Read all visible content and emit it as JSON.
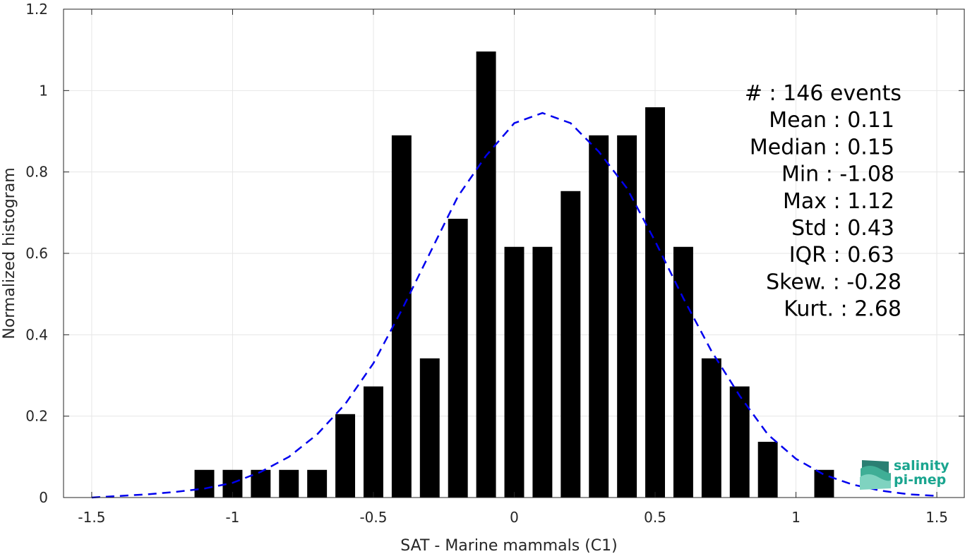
{
  "chart_data": {
    "type": "bar",
    "xlabel": "SAT - Marine mammals (C1)",
    "ylabel": "Normalized histogram",
    "xlim": [
      -1.6,
      1.6
    ],
    "ylim": [
      0,
      1.2
    ],
    "xticks": [
      "-1.5",
      "-1",
      "-0.5",
      "0",
      "0.5",
      "1",
      "1.5"
    ],
    "xtick_values": [
      -1.5,
      -1,
      -0.5,
      0,
      0.5,
      1,
      1.5
    ],
    "yticks": [
      "0",
      "0.2",
      "0.4",
      "0.6",
      "0.8",
      "1",
      "1.2"
    ],
    "ytick_values": [
      0,
      0.2,
      0.4,
      0.6,
      0.8,
      1,
      1.2
    ],
    "grid": true,
    "bar_color": "#000000",
    "bars": {
      "centers": [
        -1.1,
        -1.0,
        -0.9,
        -0.8,
        -0.7,
        -0.6,
        -0.5,
        -0.4,
        -0.3,
        -0.2,
        -0.1,
        0.0,
        0.1,
        0.2,
        0.3,
        0.4,
        0.5,
        0.6,
        0.7,
        0.8,
        0.9,
        1.0,
        1.1
      ],
      "values": [
        0.068,
        0.068,
        0.068,
        0.068,
        0.068,
        0.205,
        0.273,
        0.89,
        0.342,
        0.685,
        1.096,
        0.616,
        0.616,
        0.753,
        0.89,
        0.89,
        0.959,
        0.616,
        0.342,
        0.273,
        0.137,
        0.0,
        0.068
      ]
    },
    "fit_curve": {
      "name": "",
      "color": "#0000ee",
      "style": "dashed",
      "x": [
        -1.5,
        -1.4,
        -1.3,
        -1.2,
        -1.1,
        -1.0,
        -0.9,
        -0.8,
        -0.7,
        -0.6,
        -0.5,
        -0.4,
        -0.3,
        -0.2,
        -0.1,
        0.0,
        0.1,
        0.2,
        0.3,
        0.4,
        0.5,
        0.6,
        0.7,
        0.8,
        0.9,
        1.0,
        1.1,
        1.2,
        1.3,
        1.4,
        1.5
      ],
      "y": [
        0.0,
        0.004,
        0.008,
        0.014,
        0.022,
        0.036,
        0.063,
        0.1,
        0.155,
        0.23,
        0.33,
        0.46,
        0.6,
        0.74,
        0.84,
        0.92,
        0.945,
        0.92,
        0.85,
        0.76,
        0.63,
        0.49,
        0.36,
        0.25,
        0.155,
        0.095,
        0.056,
        0.032,
        0.017,
        0.008,
        0.004
      ]
    },
    "annotations": [
      "#  : 146 events",
      "Mean : 0.11",
      "Median : 0.15",
      "Min : -1.08",
      "Max : 1.12",
      "Std : 0.43",
      "IQR : 0.63",
      "Skew. : -0.28",
      "Kurt. : 2.68"
    ]
  },
  "logo": {
    "line1": "salinity",
    "line2": "pi-mep"
  }
}
